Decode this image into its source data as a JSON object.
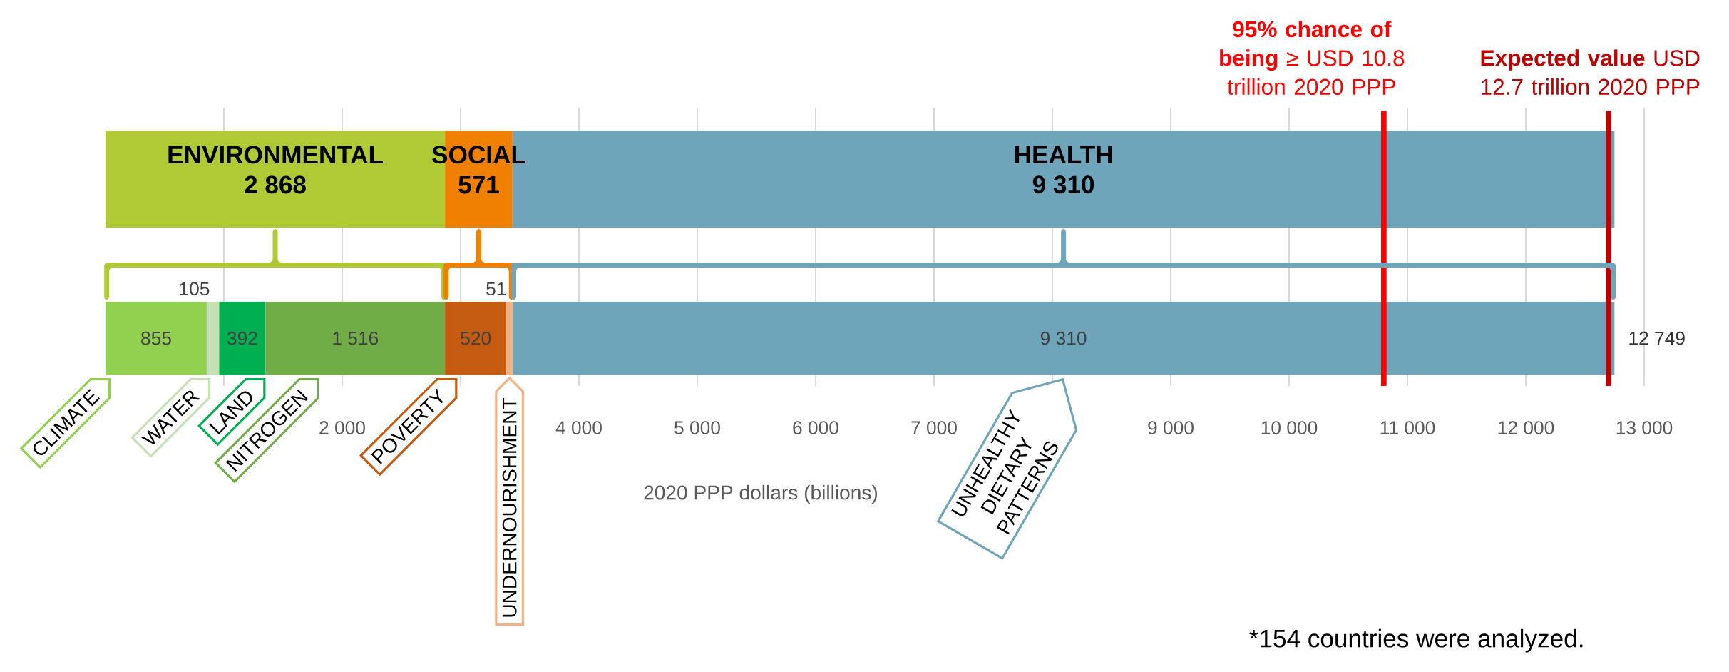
{
  "chart_data": {
    "type": "bar",
    "orientation": "horizontal",
    "stacked": true,
    "categories": [
      null,
      null
    ],
    "xlabel": "2020 PPP dollars (billions)",
    "xlim": [
      0,
      13000
    ],
    "xticks": [
      {
        "value": 1000,
        "label": null
      },
      {
        "value": 2000,
        "label": "2 000"
      },
      {
        "value": 3000,
        "label": null
      },
      {
        "value": 4000,
        "label": "4 000"
      },
      {
        "value": 5000,
        "label": "5 000"
      },
      {
        "value": 6000,
        "label": "6 000"
      },
      {
        "value": 7000,
        "label": "7 000"
      },
      {
        "value": 8000,
        "label": null
      },
      {
        "value": 9000,
        "label": "9 000"
      },
      {
        "value": 10000,
        "label": "10 000"
      },
      {
        "value": 11000,
        "label": "11 000"
      },
      {
        "value": 12000,
        "label": "12 000"
      },
      {
        "value": 13000,
        "label": "13 000"
      }
    ],
    "grid": "x",
    "tick_labels": "x",
    "series": [
      {
        "name": "ENVIRONMENTAL",
        "color": "#afca35",
        "values": [
          2868,
          null
        ],
        "value_labels": [
          "2 868",
          null
        ]
      },
      {
        "name": "SOCIAL",
        "color": "#f08000",
        "values": [
          571,
          null
        ],
        "value_labels": [
          "571",
          null
        ]
      },
      {
        "name": "HEALTH",
        "color": "#6fa5bb",
        "values": [
          9310,
          null
        ],
        "value_labels": [
          "9 310",
          null
        ]
      },
      {
        "name": "CLIMATE",
        "color": "#92d050",
        "values": [
          null,
          855
        ],
        "value_labels": [
          null,
          "855"
        ]
      },
      {
        "name": "WATER",
        "color": "#c5e0b4",
        "values": [
          null,
          105
        ],
        "value_labels": [
          null,
          "105"
        ]
      },
      {
        "name": "LAND",
        "color": "#00b050",
        "values": [
          null,
          392
        ],
        "value_labels": [
          null,
          "392"
        ]
      },
      {
        "name": "NITROGEN",
        "color": "#70ad47",
        "values": [
          null,
          1516
        ],
        "value_labels": [
          null,
          "1 516"
        ]
      },
      {
        "name": "POVERTY",
        "color": "#c55a11",
        "values": [
          null,
          520
        ],
        "value_labels": [
          null,
          "520"
        ]
      },
      {
        "name": "UNDERNOURISHMENT",
        "color": "#f4b183",
        "values": [
          null,
          51
        ],
        "value_labels": [
          null,
          "51"
        ]
      },
      {
        "name": "UNHEALTHY DIETARY PATTERNS",
        "color": "#6fa5bb",
        "values": [
          null,
          9310
        ],
        "value_labels": [
          null,
          "9 310"
        ]
      }
    ],
    "totals": [
      null,
      "12 749"
    ],
    "ref_lines": [
      {
        "axis": "x",
        "value": 10800,
        "label": "**95% chance of being** ≥ USD 10.8 trillion 2020 PPP",
        "color": "#ff0000"
      },
      {
        "axis": "x",
        "value": 12700,
        "label": "**Expected value** USD 12.7 trillion 2020 PPP",
        "color": "#c00000"
      }
    ],
    "annotations": [
      "*154 countries were analyzed."
    ]
  }
}
